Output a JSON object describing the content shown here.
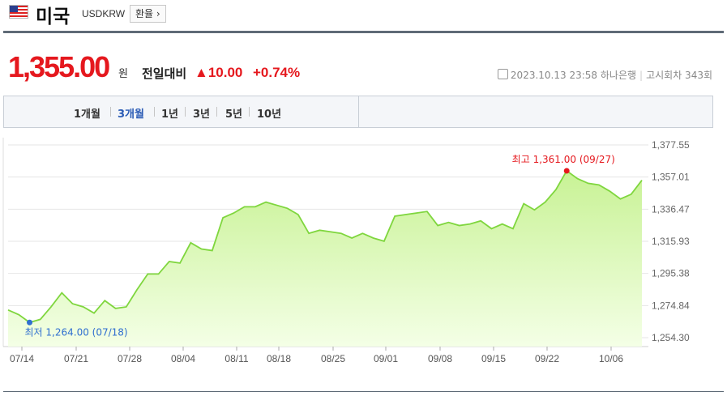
{
  "header": {
    "country": "미국",
    "code": "USDKRW",
    "convert_label": "환율"
  },
  "quote": {
    "price": "1,355.00",
    "unit": "원",
    "compare_label": "전일대비",
    "change": "▲10.00",
    "change_pct": "+0.74%",
    "datetime": "2023.10.13 23:58",
    "bank": "하나은행",
    "notice": "고시회차 343회"
  },
  "periods": [
    {
      "label": "1개월",
      "active": false
    },
    {
      "label": "3개월",
      "active": true
    },
    {
      "label": "1년",
      "active": false
    },
    {
      "label": "3년",
      "active": false
    },
    {
      "label": "5년",
      "active": false
    },
    {
      "label": "10년",
      "active": false
    }
  ],
  "colors": {
    "accent": "#e5181e",
    "line": "#7fd63e",
    "fill_top": "#c8f295",
    "fill_bottom": "#f4ffe6",
    "low": "#2f6fd0",
    "tab_active": "#2a5bb5"
  },
  "chart_data": {
    "type": "area",
    "x_ticks": [
      "07/14",
      "07/21",
      "07/28",
      "08/04",
      "08/11",
      "08/18",
      "08/25",
      "09/01",
      "09/08",
      "09/15",
      "09/22",
      "10/06"
    ],
    "y_ticks": [
      "1,377.55",
      "1,357.01",
      "1,336.47",
      "1,315.93",
      "1,295.38",
      "1,274.84",
      "1,254.30"
    ],
    "ylim": [
      1254.3,
      1377.55
    ],
    "values": [
      1272,
      1269,
      1264,
      1266,
      1274,
      1283,
      1276,
      1274,
      1270,
      1278,
      1273,
      1274,
      1285,
      1295,
      1295,
      1303,
      1302,
      1315,
      1311,
      1310,
      1331,
      1334,
      1338,
      1338,
      1341,
      1339,
      1337,
      1333,
      1321,
      1323,
      1322,
      1321,
      1318,
      1321,
      1318,
      1316,
      1332,
      1333,
      1334,
      1335,
      1326,
      1328,
      1326,
      1327,
      1329,
      1324,
      1327,
      1324,
      1340,
      1336,
      1341,
      1349,
      1361,
      1356,
      1353,
      1352,
      1348,
      1343,
      1346,
      1355
    ],
    "high": {
      "label": "최고 1,361.00 (09/27)",
      "value": 1361.0,
      "index": 52
    },
    "low": {
      "label": "최저 1,264.00 (07/18)",
      "value": 1264.0,
      "index": 2
    },
    "grid": true
  }
}
